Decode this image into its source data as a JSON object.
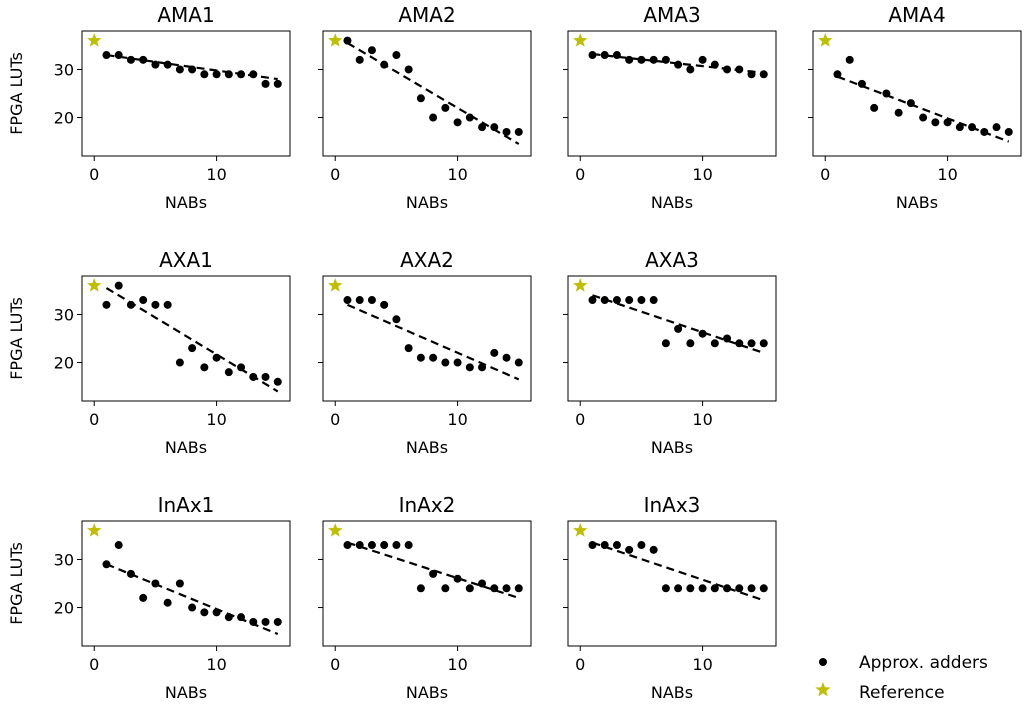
{
  "chart_data": {
    "type": "scatter",
    "panels": [
      {
        "title": "AMA1",
        "xlabel": "NABs",
        "ylabel": "FPGA LUTs",
        "x": [
          1,
          2,
          3,
          4,
          5,
          6,
          7,
          8,
          9,
          10,
          11,
          12,
          13,
          14,
          15
        ],
        "y": [
          33,
          33,
          32,
          32,
          31,
          31,
          30,
          30,
          29,
          29,
          29,
          29,
          29,
          27,
          27
        ],
        "reference": {
          "x": 0,
          "y": 36
        },
        "fit": [
          [
            1,
            33
          ],
          [
            15,
            28
          ]
        ]
      },
      {
        "title": "AMA2",
        "xlabel": "NABs",
        "ylabel": "",
        "x": [
          1,
          2,
          3,
          4,
          5,
          6,
          7,
          8,
          9,
          10,
          11,
          12,
          13,
          14,
          15
        ],
        "y": [
          36,
          32,
          34,
          31,
          33,
          30,
          24,
          20,
          22,
          19,
          20,
          18,
          18,
          17,
          17
        ],
        "reference": {
          "x": 0,
          "y": 36
        },
        "fit": [
          [
            1,
            35.5
          ],
          [
            15,
            14.5
          ]
        ]
      },
      {
        "title": "AMA3",
        "xlabel": "NABs",
        "ylabel": "",
        "x": [
          1,
          2,
          3,
          4,
          5,
          6,
          7,
          8,
          9,
          10,
          11,
          12,
          13,
          14,
          15
        ],
        "y": [
          33,
          33,
          33,
          32,
          32,
          32,
          32,
          31,
          30,
          32,
          31,
          30,
          30,
          29,
          29
        ],
        "reference": {
          "x": 0,
          "y": 36
        },
        "fit": [
          [
            1,
            33.2
          ],
          [
            15,
            29.3
          ]
        ]
      },
      {
        "title": "AMA4",
        "xlabel": "NABs",
        "ylabel": "",
        "x": [
          1,
          2,
          3,
          4,
          5,
          6,
          7,
          8,
          9,
          10,
          11,
          12,
          13,
          14,
          15
        ],
        "y": [
          29,
          32,
          27,
          22,
          25,
          21,
          23,
          20,
          19,
          19,
          18,
          18,
          17,
          18,
          17
        ],
        "reference": {
          "x": 0,
          "y": 36
        },
        "fit": [
          [
            1,
            28.5
          ],
          [
            15,
            15
          ]
        ]
      },
      {
        "title": "AXA1",
        "xlabel": "NABs",
        "ylabel": "FPGA LUTs",
        "x": [
          1,
          2,
          3,
          4,
          5,
          6,
          7,
          8,
          9,
          10,
          11,
          12,
          13,
          14,
          15
        ],
        "y": [
          32,
          36,
          32,
          33,
          32,
          32,
          20,
          23,
          19,
          21,
          18,
          19,
          17,
          17,
          16
        ],
        "reference": {
          "x": 0,
          "y": 36
        },
        "fit": [
          [
            1,
            35.5
          ],
          [
            15,
            14
          ]
        ]
      },
      {
        "title": "AXA2",
        "xlabel": "NABs",
        "ylabel": "",
        "x": [
          1,
          2,
          3,
          4,
          5,
          6,
          7,
          8,
          9,
          10,
          11,
          12,
          13,
          14,
          15
        ],
        "y": [
          33,
          33,
          33,
          32,
          29,
          23,
          21,
          21,
          20,
          20,
          19,
          19,
          22,
          21,
          20
        ],
        "reference": {
          "x": 0,
          "y": 36
        },
        "fit": [
          [
            1,
            32
          ],
          [
            15,
            16.5
          ]
        ]
      },
      {
        "title": "AXA3",
        "xlabel": "NABs",
        "ylabel": "",
        "x": [
          1,
          2,
          3,
          4,
          5,
          6,
          7,
          8,
          9,
          10,
          11,
          12,
          13,
          14,
          15
        ],
        "y": [
          33,
          33,
          33,
          33,
          33,
          33,
          24,
          27,
          24,
          26,
          24,
          25,
          24,
          24,
          24
        ],
        "reference": {
          "x": 0,
          "y": 36
        },
        "fit": [
          [
            1,
            34
          ],
          [
            15,
            22
          ]
        ]
      },
      {
        "title": "InAx1",
        "xlabel": "NABs",
        "ylabel": "FPGA LUTs",
        "x": [
          1,
          2,
          3,
          4,
          5,
          6,
          7,
          8,
          9,
          10,
          11,
          12,
          13,
          14,
          15
        ],
        "y": [
          29,
          33,
          27,
          22,
          25,
          21,
          25,
          20,
          19,
          19,
          18,
          18,
          17,
          17,
          17
        ],
        "reference": {
          "x": 0,
          "y": 36
        },
        "fit": [
          [
            1,
            29
          ],
          [
            15,
            14.5
          ]
        ]
      },
      {
        "title": "InAx2",
        "xlabel": "NABs",
        "ylabel": "",
        "x": [
          1,
          2,
          3,
          4,
          5,
          6,
          7,
          8,
          9,
          10,
          11,
          12,
          13,
          14,
          15
        ],
        "y": [
          33,
          33,
          33,
          33,
          33,
          33,
          24,
          27,
          24,
          26,
          24,
          25,
          24,
          24,
          24
        ],
        "reference": {
          "x": 0,
          "y": 36
        },
        "fit": [
          [
            1,
            33.5
          ],
          [
            15,
            22
          ]
        ]
      },
      {
        "title": "InAx3",
        "xlabel": "NABs",
        "ylabel": "",
        "x": [
          1,
          2,
          3,
          4,
          5,
          6,
          7,
          8,
          9,
          10,
          11,
          12,
          13,
          14,
          15
        ],
        "y": [
          33,
          33,
          33,
          32,
          33,
          32,
          24,
          24,
          24,
          24,
          24,
          24,
          24,
          24,
          24
        ],
        "reference": {
          "x": 0,
          "y": 36
        },
        "fit": [
          [
            1,
            33.5
          ],
          [
            15,
            21.5
          ]
        ]
      }
    ],
    "x_ticks": [
      0,
      10
    ],
    "y_ticks": [
      20,
      30
    ],
    "xlim": [
      -1,
      16
    ],
    "ylim": [
      12,
      38
    ],
    "legend": {
      "position": "bottom-right",
      "entries": [
        {
          "label": "Approx. adders",
          "marker": "circle",
          "color": "#000000"
        },
        {
          "label": "Reference",
          "marker": "star",
          "color": "#bfbf00"
        }
      ]
    },
    "colors": {
      "points": "#000000",
      "reference": "#bfbf00",
      "fit": "#000000"
    }
  }
}
